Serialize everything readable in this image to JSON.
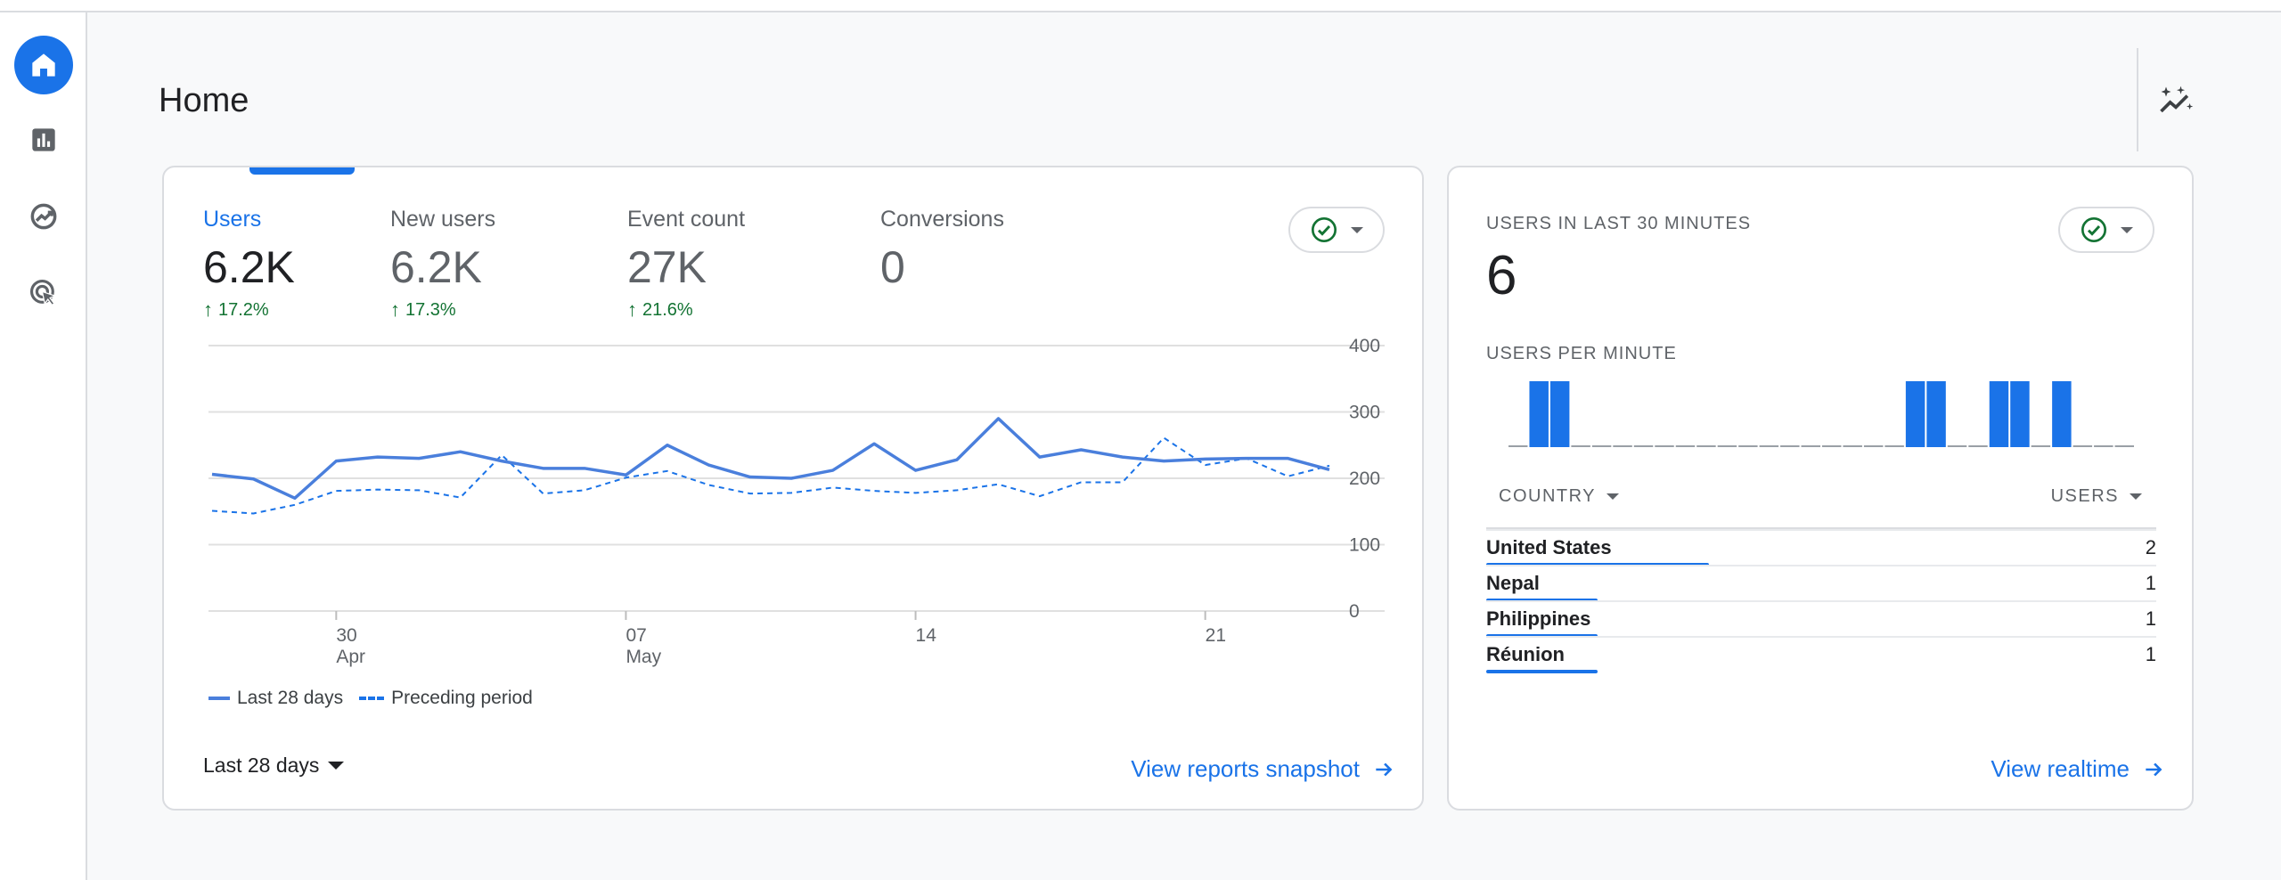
{
  "page": {
    "title": "Home"
  },
  "main_card": {
    "metrics": [
      {
        "label": "Users",
        "value": "6.2K",
        "change": "17.2%",
        "active": true
      },
      {
        "label": "New users",
        "value": "6.2K",
        "change": "17.3%",
        "active": false
      },
      {
        "label": "Event count",
        "value": "27K",
        "change": "21.6%",
        "active": false
      },
      {
        "label": "Conversions",
        "value": "0",
        "change": "",
        "active": false
      }
    ],
    "date_range": "Last 28 days",
    "view_link": "View reports snapshot"
  },
  "chart_data": {
    "type": "line",
    "ylim": [
      0,
      400
    ],
    "y_ticks": [
      "400",
      "300",
      "200",
      "100",
      "0"
    ],
    "x_ticks": [
      {
        "index": 3,
        "line1": "30",
        "line2": "Apr"
      },
      {
        "index": 10,
        "line1": "07",
        "line2": "May"
      },
      {
        "index": 17,
        "line1": "14",
        "line2": ""
      },
      {
        "index": 24,
        "line1": "21",
        "line2": ""
      }
    ],
    "series": [
      {
        "name": "Last 28 days",
        "style": "solid",
        "color": "#4a7fdc",
        "values": [
          206,
          199,
          170,
          226,
          232,
          230,
          240,
          226,
          215,
          215,
          205,
          250,
          220,
          202,
          200,
          212,
          252,
          212,
          228,
          290,
          232,
          243,
          232,
          226,
          229,
          230,
          230,
          213
        ]
      },
      {
        "name": "Preceding period",
        "style": "dashed",
        "color": "#1a73e8",
        "values": [
          151,
          147,
          160,
          181,
          183,
          182,
          171,
          235,
          177,
          182,
          201,
          211,
          190,
          177,
          178,
          186,
          181,
          178,
          182,
          191,
          173,
          194,
          194,
          261,
          220,
          230,
          203,
          219
        ]
      }
    ]
  },
  "realtime": {
    "title": "USERS IN LAST 30 MINUTES",
    "value": "6",
    "per_minute_label": "USERS PER MINUTE",
    "per_minute": [
      0,
      1,
      1,
      0,
      0,
      0,
      0,
      0,
      0,
      0,
      0,
      0,
      0,
      0,
      0,
      0,
      0,
      0,
      0,
      1,
      1,
      0,
      0,
      1,
      1,
      0,
      1,
      0,
      0,
      0
    ],
    "col_country": "COUNTRY",
    "col_users": "USERS",
    "rows": [
      {
        "country": "United States",
        "users": "2",
        "share": 1.0
      },
      {
        "country": "Nepal",
        "users": "1",
        "share": 0.5
      },
      {
        "country": "Philippines",
        "users": "1",
        "share": 0.5
      },
      {
        "country": "Réunion",
        "users": "1",
        "share": 0.5
      }
    ],
    "view_link": "View realtime"
  },
  "colors": {
    "accent": "#1a73e8",
    "positive": "#137333"
  },
  "icons": {
    "nav": [
      "home-icon",
      "bar-chart-icon",
      "explore-icon",
      "advertising-icon"
    ],
    "insights": "insights-sparkle-icon"
  }
}
